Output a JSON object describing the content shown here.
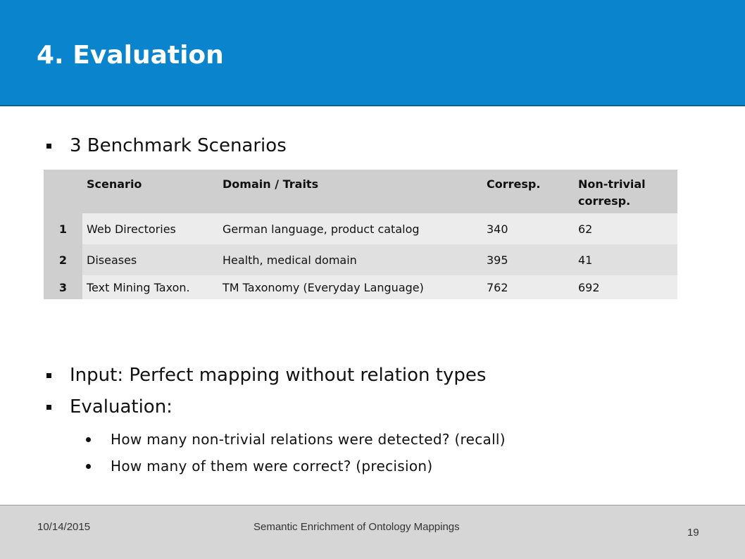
{
  "slide": {
    "title": "4. Evaluation"
  },
  "bullets": {
    "benchmark": "3 Benchmark Scenarios",
    "input": "Input: Perfect mapping without relation types",
    "evaluation": "Evaluation:",
    "sub1": "How many non-trivial relations were detected? (recall)",
    "sub2": "How many of them were correct? (precision)"
  },
  "table": {
    "headers": [
      "",
      "Scenario",
      "Domain / Traits",
      "Corresp.",
      "Non-trivial corresp."
    ],
    "rows": [
      [
        "1",
        "Web Directories",
        "German language, product catalog",
        "340",
        "62"
      ],
      [
        "2",
        "Diseases",
        "Health, medical domain",
        "395",
        "41"
      ],
      [
        "3",
        "Text Mining Taxon.",
        "TM Taxonomy (Everyday Language)",
        "762",
        "692"
      ]
    ]
  },
  "footer": {
    "date": "10/14/2015",
    "title": "Semantic Enrichment of Ontology Mappings",
    "page": "19"
  },
  "colors": {
    "header_bg": "#0a84cc",
    "footer_bg": "#d6d6d6",
    "table_header_bg": "#cfcfcf"
  }
}
